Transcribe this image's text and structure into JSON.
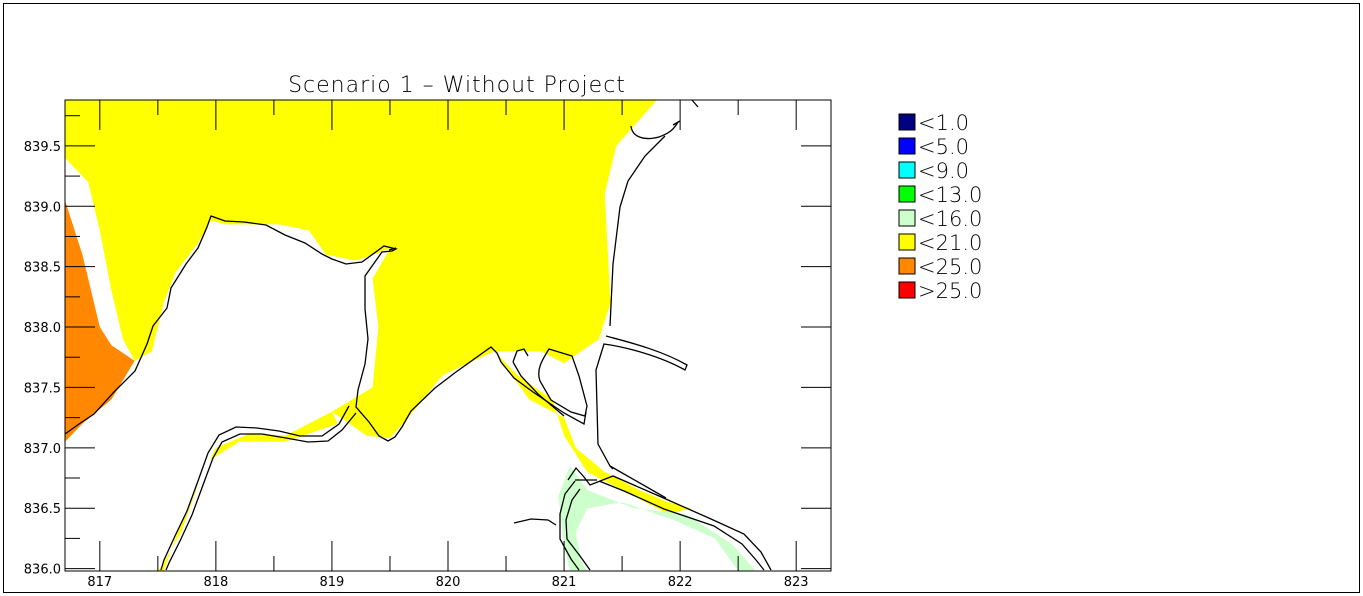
{
  "chart_data": {
    "type": "heatmap",
    "title": "Scenario 1 – Without Project",
    "xlabel": "",
    "ylabel": "",
    "xlim": [
      816.7,
      823.3
    ],
    "ylim": [
      835.98,
      839.88
    ],
    "x_ticks": [
      "817",
      "818",
      "819",
      "820",
      "821",
      "822",
      "823"
    ],
    "y_ticks": [
      "836.0",
      "836.5",
      "837.0",
      "837.5",
      "838.0",
      "838.5",
      "839.0",
      "839.5"
    ],
    "legend_position": "right",
    "legend": [
      {
        "label": "<1.0",
        "color": "#000080"
      },
      {
        "label": "<5.0",
        "color": "#0000ff"
      },
      {
        "label": "<9.0",
        "color": "#00ffff"
      },
      {
        "label": "<13.0",
        "color": "#00ff00"
      },
      {
        "label": "<16.0",
        "color": "#ccffcc"
      },
      {
        "label": "<21.0",
        "color": "#ffff00"
      },
      {
        "label": "<25.0",
        "color": "#ff8800"
      },
      {
        "label": ">25.0",
        "color": "#ff0000"
      }
    ],
    "regions": [
      {
        "class": "<21.0",
        "color": "#ffff00",
        "polygon": [
          [
            816.7,
            839.88
          ],
          [
            821.8,
            839.88
          ],
          [
            821.45,
            839.5
          ],
          [
            821.35,
            839.1
          ],
          [
            821.4,
            838.2
          ],
          [
            821.3,
            837.9
          ],
          [
            821.0,
            837.7
          ],
          [
            820.8,
            837.8
          ],
          [
            820.4,
            837.8
          ],
          [
            819.95,
            837.6
          ],
          [
            819.7,
            837.3
          ],
          [
            819.5,
            837.08
          ],
          [
            819.3,
            837.1
          ],
          [
            819.0,
            837.3
          ],
          [
            819.35,
            837.5
          ],
          [
            819.4,
            838.0
          ],
          [
            819.35,
            838.4
          ],
          [
            819.5,
            838.65
          ],
          [
            819.3,
            838.58
          ],
          [
            819.2,
            838.55
          ],
          [
            818.95,
            838.6
          ],
          [
            818.8,
            838.8
          ],
          [
            818.55,
            838.85
          ],
          [
            818.3,
            838.85
          ],
          [
            818.1,
            838.85
          ],
          [
            817.95,
            838.88
          ],
          [
            817.85,
            838.7
          ],
          [
            817.65,
            838.45
          ],
          [
            817.55,
            838.2
          ],
          [
            817.45,
            837.8
          ],
          [
            817.3,
            837.72
          ],
          [
            817.2,
            837.9
          ],
          [
            817.1,
            838.3
          ],
          [
            817.0,
            838.8
          ],
          [
            816.9,
            839.2
          ],
          [
            816.7,
            839.4
          ]
        ]
      },
      {
        "class": "<21.0",
        "color": "#ffff00",
        "polygon": [
          [
            820.4,
            837.8
          ],
          [
            820.7,
            837.4
          ],
          [
            821.0,
            837.25
          ],
          [
            821.1,
            837.0
          ],
          [
            821.35,
            836.8
          ],
          [
            821.65,
            836.65
          ],
          [
            821.9,
            836.55
          ],
          [
            822.1,
            836.5
          ],
          [
            821.9,
            836.45
          ],
          [
            821.4,
            836.7
          ],
          [
            821.2,
            836.8
          ],
          [
            821.0,
            837.1
          ],
          [
            820.9,
            837.4
          ],
          [
            820.6,
            837.6
          ]
        ]
      },
      {
        "class": "<21.0",
        "color": "#ffff00",
        "polygon": [
          [
            819.0,
            837.3
          ],
          [
            818.6,
            837.1
          ],
          [
            818.3,
            837.12
          ],
          [
            818.0,
            837.0
          ],
          [
            817.85,
            836.7
          ],
          [
            817.7,
            836.3
          ],
          [
            817.55,
            836.05
          ],
          [
            817.5,
            835.98
          ],
          [
            817.55,
            835.98
          ],
          [
            817.65,
            836.25
          ],
          [
            817.8,
            836.6
          ],
          [
            817.95,
            836.9
          ],
          [
            818.2,
            837.05
          ],
          [
            818.6,
            837.05
          ],
          [
            819.05,
            837.2
          ]
        ]
      },
      {
        "class": "<16.0",
        "color": "#ccffcc",
        "polygon": [
          [
            821.05,
            836.85
          ],
          [
            821.2,
            836.65
          ],
          [
            821.6,
            836.5
          ],
          [
            822.05,
            836.45
          ],
          [
            822.45,
            836.2
          ],
          [
            822.65,
            835.98
          ],
          [
            822.5,
            835.98
          ],
          [
            822.3,
            836.25
          ],
          [
            821.95,
            836.4
          ],
          [
            821.5,
            836.55
          ],
          [
            821.2,
            836.5
          ],
          [
            821.1,
            836.3
          ],
          [
            821.15,
            836.05
          ],
          [
            821.2,
            835.98
          ],
          [
            821.05,
            835.98
          ],
          [
            821.0,
            836.2
          ],
          [
            820.95,
            836.6
          ]
        ]
      },
      {
        "class": "<25.0",
        "color": "#ff8800",
        "polygon": [
          [
            816.7,
            839.05
          ],
          [
            816.85,
            838.6
          ],
          [
            817.0,
            838.0
          ],
          [
            817.1,
            837.85
          ],
          [
            817.3,
            837.72
          ],
          [
            817.1,
            837.4
          ],
          [
            816.85,
            837.2
          ],
          [
            816.7,
            837.05
          ]
        ]
      }
    ]
  }
}
